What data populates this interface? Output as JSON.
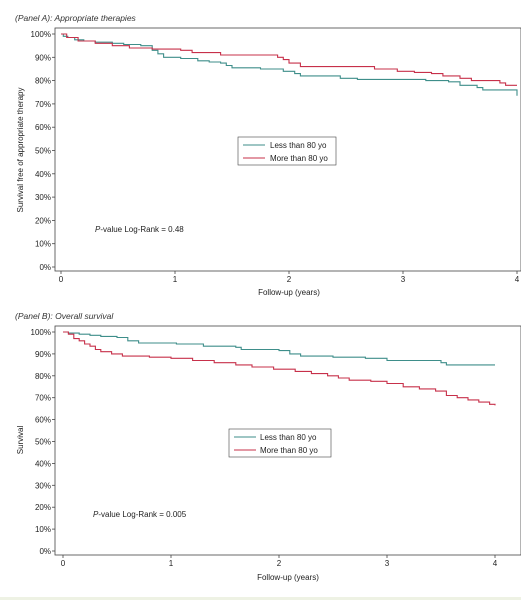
{
  "colors": {
    "less_than_80": "#3e8e8a",
    "more_than_80": "#c7304a",
    "axis": "#444444"
  },
  "chart_data": [
    {
      "type": "line",
      "subtype": "kaplan-meier step",
      "title": "(Panel A): Appropriate therapies",
      "xlabel": "Follow-up (years)",
      "ylabel": "Survival free of appropriate therapy",
      "xlim": [
        0,
        4
      ],
      "ylim": [
        0,
        100
      ],
      "x_ticks": [
        "0",
        "1",
        "2",
        "3",
        "4"
      ],
      "y_ticks": [
        "0%",
        "10%",
        "20%",
        "30%",
        "40%",
        "50%",
        "60%",
        "70%",
        "80%",
        "90%",
        "100%"
      ],
      "grid": false,
      "legend_position": "center",
      "annotation": "P-value Log-Rank = 0.48",
      "series": [
        {
          "name": "Less than 80 yo",
          "color": "#3e8e8a",
          "points": [
            [
              0,
              100
            ],
            [
              0.02,
              99
            ],
            [
              0.06,
              98.5
            ],
            [
              0.12,
              97.5
            ],
            [
              0.2,
              97
            ],
            [
              0.3,
              96.5
            ],
            [
              0.45,
              96
            ],
            [
              0.55,
              95.5
            ],
            [
              0.7,
              95
            ],
            [
              0.8,
              93
            ],
            [
              0.85,
              91.5
            ],
            [
              0.9,
              90
            ],
            [
              1.05,
              89.5
            ],
            [
              1.2,
              88.5
            ],
            [
              1.3,
              88
            ],
            [
              1.4,
              87.5
            ],
            [
              1.45,
              86.5
            ],
            [
              1.5,
              85.5
            ],
            [
              1.75,
              85
            ],
            [
              1.95,
              84
            ],
            [
              2.05,
              83
            ],
            [
              2.1,
              82
            ],
            [
              2.4,
              82
            ],
            [
              2.45,
              81
            ],
            [
              2.6,
              80.5
            ],
            [
              3.2,
              80
            ],
            [
              3.4,
              79.5
            ],
            [
              3.5,
              78
            ],
            [
              3.65,
              77
            ],
            [
              3.7,
              76
            ],
            [
              3.95,
              76
            ],
            [
              4,
              73.5
            ]
          ]
        },
        {
          "name": "More than 80 yo",
          "color": "#c7304a",
          "points": [
            [
              0,
              100
            ],
            [
              0.05,
              98.5
            ],
            [
              0.15,
              97
            ],
            [
              0.3,
              96
            ],
            [
              0.45,
              95
            ],
            [
              0.6,
              94
            ],
            [
              0.8,
              93.5
            ],
            [
              1.05,
              93
            ],
            [
              1.15,
              92
            ],
            [
              1.4,
              91
            ],
            [
              1.9,
              90
            ],
            [
              1.95,
              89
            ],
            [
              2.0,
              87.5
            ],
            [
              2.1,
              86
            ],
            [
              2.6,
              86
            ],
            [
              2.75,
              85
            ],
            [
              2.95,
              84
            ],
            [
              3.1,
              83.5
            ],
            [
              3.25,
              83
            ],
            [
              3.35,
              82
            ],
            [
              3.5,
              81
            ],
            [
              3.6,
              80
            ],
            [
              3.85,
              79
            ],
            [
              3.9,
              78
            ],
            [
              4,
              78
            ]
          ]
        }
      ]
    },
    {
      "type": "line",
      "subtype": "kaplan-meier step",
      "title": "(Panel B): Overall survival",
      "xlabel": "Follow-up (years)",
      "ylabel": "Survival",
      "xlim": [
        0,
        4
      ],
      "ylim": [
        0,
        100
      ],
      "x_ticks": [
        "0",
        "1",
        "2",
        "3",
        "4"
      ],
      "y_ticks": [
        "0%",
        "10%",
        "20%",
        "30%",
        "40%",
        "50%",
        "60%",
        "70%",
        "80%",
        "90%",
        "100%"
      ],
      "grid": false,
      "legend_position": "center",
      "annotation": "P-value Log-Rank = 0.005",
      "series": [
        {
          "name": "Less than 80 yo",
          "color": "#3e8e8a",
          "points": [
            [
              0,
              100
            ],
            [
              0.05,
              99.5
            ],
            [
              0.15,
              99
            ],
            [
              0.25,
              98.5
            ],
            [
              0.35,
              98
            ],
            [
              0.5,
              97.5
            ],
            [
              0.6,
              96
            ],
            [
              0.7,
              95
            ],
            [
              1.05,
              94.5
            ],
            [
              1.3,
              93.5
            ],
            [
              1.6,
              93
            ],
            [
              1.65,
              92
            ],
            [
              2.0,
              91.5
            ],
            [
              2.1,
              90
            ],
            [
              2.2,
              89
            ],
            [
              2.5,
              88.5
            ],
            [
              2.8,
              88
            ],
            [
              3.0,
              87
            ],
            [
              3.5,
              86
            ],
            [
              3.55,
              85
            ],
            [
              4,
              85
            ]
          ]
        },
        {
          "name": "More than 80 yo",
          "color": "#c7304a",
          "points": [
            [
              0,
              100
            ],
            [
              0.05,
              99
            ],
            [
              0.1,
              97
            ],
            [
              0.15,
              96
            ],
            [
              0.2,
              94.5
            ],
            [
              0.25,
              93.5
            ],
            [
              0.3,
              92
            ],
            [
              0.35,
              91
            ],
            [
              0.45,
              90
            ],
            [
              0.55,
              89
            ],
            [
              0.8,
              88.5
            ],
            [
              1.0,
              88
            ],
            [
              1.2,
              87
            ],
            [
              1.4,
              86
            ],
            [
              1.6,
              85
            ],
            [
              1.75,
              84
            ],
            [
              1.95,
              83
            ],
            [
              2.15,
              82
            ],
            [
              2.3,
              81
            ],
            [
              2.45,
              80
            ],
            [
              2.55,
              79
            ],
            [
              2.65,
              78
            ],
            [
              2.85,
              77.5
            ],
            [
              3.0,
              76.5
            ],
            [
              3.15,
              75
            ],
            [
              3.3,
              74
            ],
            [
              3.45,
              73
            ],
            [
              3.55,
              71
            ],
            [
              3.65,
              70
            ],
            [
              3.75,
              69
            ],
            [
              3.85,
              68
            ],
            [
              3.95,
              67
            ],
            [
              4,
              66.5
            ]
          ]
        }
      ]
    }
  ]
}
